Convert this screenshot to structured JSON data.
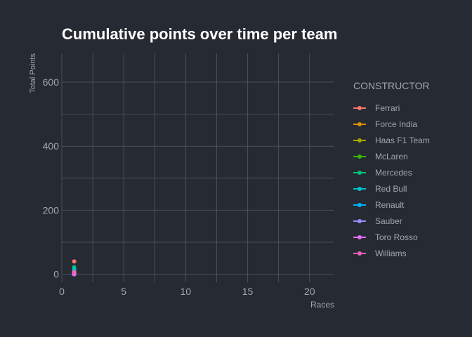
{
  "chart_data": {
    "type": "line",
    "title": "Cumulative points over time per team",
    "xlabel": "Races",
    "ylabel": "Total Points",
    "xlim": [
      0,
      22
    ],
    "ylim": [
      -25,
      690
    ],
    "x_ticks": [
      0,
      5,
      10,
      15,
      20
    ],
    "y_ticks": [
      0,
      200,
      400,
      600
    ],
    "grid": true,
    "legend": {
      "title": "CONSTRUCTOR",
      "placement": "right"
    },
    "series": [
      {
        "name": "Ferrari",
        "color": "#f8766d",
        "x": [
          1
        ],
        "y": [
          40
        ]
      },
      {
        "name": "Force India",
        "color": "#d89000",
        "x": [
          1
        ],
        "y": [
          8
        ]
      },
      {
        "name": "Haas F1 Team",
        "color": "#a3a500",
        "x": [
          1
        ],
        "y": [
          8
        ]
      },
      {
        "name": "McLaren",
        "color": "#39b600",
        "x": [
          1
        ],
        "y": [
          0
        ]
      },
      {
        "name": "Mercedes",
        "color": "#00bf7d",
        "x": [
          1
        ],
        "y": [
          22
        ]
      },
      {
        "name": "Red Bull",
        "color": "#00bfc4",
        "x": [
          1
        ],
        "y": [
          15
        ]
      },
      {
        "name": "Renault",
        "color": "#00b0f6",
        "x": [
          1
        ],
        "y": [
          4
        ]
      },
      {
        "name": "Sauber",
        "color": "#9590ff",
        "x": [
          1
        ],
        "y": [
          0
        ]
      },
      {
        "name": "Toro Rosso",
        "color": "#e76bf3",
        "x": [
          1
        ],
        "y": [
          0
        ]
      },
      {
        "name": "Williams",
        "color": "#ff62bc",
        "x": [
          1
        ],
        "y": [
          6
        ]
      }
    ]
  }
}
